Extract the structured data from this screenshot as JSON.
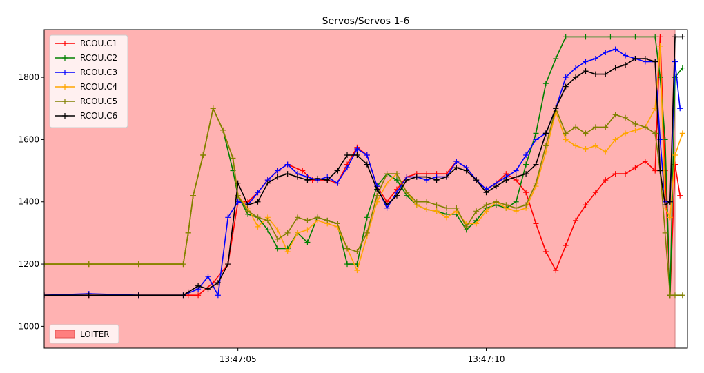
{
  "chart_data": {
    "type": "line",
    "title": "Servos/Servos 1-6",
    "xlabel": "",
    "ylabel": "",
    "x_unit": "seconds",
    "x_ticks": [
      {
        "value": 5,
        "label": "13:47:05"
      },
      {
        "value": 10,
        "label": "13:47:10"
      }
    ],
    "y_ticks": [
      1000,
      1200,
      1400,
      1600,
      1800
    ],
    "xlim": [
      1.1,
      14.05
    ],
    "ylim": [
      930,
      1953
    ],
    "grid": false,
    "legend_position": "top-left",
    "series": [
      {
        "name": "RCOU.C1",
        "color": "#ff0000",
        "x": [
          1.1,
          2,
          3,
          4,
          4.2,
          4.5,
          4.8,
          5.0,
          5.2,
          5.4,
          5.6,
          5.8,
          6.0,
          6.3,
          6.5,
          6.8,
          7.0,
          7.2,
          7.4,
          7.6,
          7.8,
          8.0,
          8.2,
          8.4,
          8.6,
          8.8,
          9.0,
          9.2,
          9.4,
          9.6,
          9.8,
          10.0,
          10.2,
          10.4,
          10.6,
          10.8,
          11.0,
          11.2,
          11.4,
          11.6,
          11.8,
          12.0,
          12.2,
          12.4,
          12.6,
          12.8,
          13.0,
          13.2,
          13.4,
          13.5,
          13.6,
          13.7,
          13.8,
          13.9
        ],
        "y": [
          1100,
          1100,
          1100,
          1100,
          1100,
          1140,
          1200,
          1400,
          1400,
          1430,
          1470,
          1500,
          1520,
          1500,
          1470,
          1470,
          1460,
          1520,
          1575,
          1550,
          1450,
          1400,
          1440,
          1480,
          1490,
          1490,
          1490,
          1490,
          1530,
          1510,
          1470,
          1440,
          1460,
          1490,
          1470,
          1430,
          1330,
          1240,
          1180,
          1260,
          1340,
          1390,
          1430,
          1470,
          1490,
          1490,
          1510,
          1530,
          1500,
          1930,
          1500,
          1100,
          1520,
          1420
        ]
      },
      {
        "name": "RCOU.C2",
        "color": "#008000",
        "x": [
          1.1,
          2,
          3,
          3.9,
          4.0,
          4.1,
          4.3,
          4.5,
          4.7,
          4.9,
          5.0,
          5.2,
          5.4,
          5.6,
          5.8,
          6.0,
          6.2,
          6.4,
          6.6,
          6.8,
          7.0,
          7.2,
          7.4,
          7.6,
          7.8,
          8.0,
          8.2,
          8.4,
          8.6,
          8.8,
          9.0,
          9.2,
          9.4,
          9.6,
          9.8,
          10.0,
          10.2,
          10.4,
          10.6,
          10.8,
          11.0,
          11.2,
          11.4,
          11.6,
          12.0,
          12.5,
          13.0,
          13.4,
          13.5,
          13.6,
          13.7,
          13.8,
          13.95
        ],
        "y": [
          1200,
          1200,
          1200,
          1200,
          1300,
          1420,
          1550,
          1700,
          1630,
          1500,
          1420,
          1360,
          1350,
          1310,
          1250,
          1250,
          1300,
          1270,
          1350,
          1340,
          1330,
          1200,
          1200,
          1350,
          1450,
          1490,
          1470,
          1420,
          1390,
          1375,
          1370,
          1360,
          1360,
          1310,
          1340,
          1380,
          1390,
          1380,
          1400,
          1520,
          1620,
          1780,
          1860,
          1930,
          1930,
          1930,
          1930,
          1930,
          1800,
          1600,
          1100,
          1800,
          1830
        ]
      },
      {
        "name": "RCOU.C3",
        "color": "#0000ff",
        "x": [
          1.1,
          2,
          3,
          3.9,
          4.2,
          4.4,
          4.6,
          4.8,
          5.0,
          5.2,
          5.4,
          5.6,
          5.8,
          6.0,
          6.2,
          6.4,
          6.6,
          6.8,
          7.0,
          7.2,
          7.4,
          7.6,
          7.8,
          8.0,
          8.2,
          8.4,
          8.6,
          8.8,
          9.0,
          9.2,
          9.4,
          9.6,
          9.8,
          10.0,
          10.2,
          10.4,
          10.6,
          10.8,
          11.0,
          11.2,
          11.4,
          11.6,
          11.8,
          12.0,
          12.2,
          12.4,
          12.6,
          12.8,
          13.0,
          13.2,
          13.4,
          13.5,
          13.6,
          13.7,
          13.8,
          13.9
        ],
        "y": [
          1100,
          1105,
          1100,
          1100,
          1120,
          1160,
          1100,
          1350,
          1400,
          1390,
          1430,
          1470,
          1500,
          1520,
          1490,
          1480,
          1470,
          1480,
          1460,
          1510,
          1570,
          1550,
          1450,
          1380,
          1430,
          1480,
          1480,
          1470,
          1480,
          1480,
          1530,
          1510,
          1470,
          1440,
          1460,
          1480,
          1500,
          1550,
          1600,
          1620,
          1700,
          1800,
          1830,
          1850,
          1860,
          1880,
          1890,
          1870,
          1860,
          1850,
          1850,
          1600,
          1400,
          1400,
          1850,
          1700
        ]
      },
      {
        "name": "RCOU.C4",
        "color": "#ffa500",
        "x": [
          1.1,
          2,
          3,
          3.9,
          4.0,
          4.1,
          4.3,
          4.5,
          4.7,
          4.9,
          5.0,
          5.2,
          5.4,
          5.6,
          5.8,
          6.0,
          6.2,
          6.4,
          6.6,
          6.8,
          7.0,
          7.2,
          7.4,
          7.6,
          7.8,
          8.0,
          8.2,
          8.4,
          8.6,
          8.8,
          9.0,
          9.2,
          9.4,
          9.6,
          9.8,
          10.0,
          10.2,
          10.4,
          10.6,
          10.8,
          11.0,
          11.2,
          11.4,
          11.6,
          11.8,
          12.0,
          12.2,
          12.4,
          12.6,
          12.8,
          13.0,
          13.2,
          13.4,
          13.5,
          13.6,
          13.7,
          13.8,
          13.95
        ],
        "y": [
          1200,
          1200,
          1200,
          1200,
          1300,
          1420,
          1550,
          1700,
          1630,
          1540,
          1420,
          1380,
          1320,
          1350,
          1310,
          1240,
          1300,
          1310,
          1340,
          1330,
          1320,
          1250,
          1180,
          1290,
          1400,
          1460,
          1490,
          1430,
          1390,
          1375,
          1370,
          1350,
          1370,
          1330,
          1330,
          1370,
          1400,
          1380,
          1370,
          1380,
          1450,
          1560,
          1690,
          1600,
          1580,
          1570,
          1580,
          1560,
          1600,
          1620,
          1630,
          1640,
          1700,
          1900,
          1380,
          1350,
          1550,
          1620
        ]
      },
      {
        "name": "RCOU.C5",
        "color": "#808000",
        "x": [
          1.1,
          2,
          3,
          3.9,
          4.0,
          4.1,
          4.3,
          4.5,
          4.7,
          4.9,
          5.0,
          5.2,
          5.4,
          5.6,
          5.8,
          6.0,
          6.2,
          6.4,
          6.6,
          6.8,
          7.0,
          7.2,
          7.4,
          7.6,
          7.8,
          8.0,
          8.2,
          8.4,
          8.6,
          8.8,
          9.0,
          9.2,
          9.4,
          9.6,
          9.8,
          10.0,
          10.2,
          10.4,
          10.6,
          10.8,
          11.0,
          11.2,
          11.4,
          11.6,
          11.8,
          12.0,
          12.2,
          12.4,
          12.6,
          12.8,
          13.0,
          13.2,
          13.4,
          13.5,
          13.6,
          13.7,
          13.8,
          13.95
        ],
        "y": [
          1200,
          1200,
          1200,
          1200,
          1300,
          1420,
          1550,
          1700,
          1630,
          1540,
          1420,
          1370,
          1350,
          1340,
          1280,
          1300,
          1350,
          1340,
          1350,
          1340,
          1330,
          1250,
          1240,
          1300,
          1420,
          1490,
          1490,
          1430,
          1400,
          1400,
          1390,
          1380,
          1380,
          1320,
          1370,
          1390,
          1400,
          1390,
          1380,
          1390,
          1460,
          1580,
          1700,
          1620,
          1640,
          1620,
          1640,
          1640,
          1680,
          1670,
          1650,
          1640,
          1620,
          1500,
          1300,
          1100,
          1100,
          1100
        ]
      },
      {
        "name": "RCOU.C6",
        "color": "#000000",
        "x": [
          1.1,
          2,
          3,
          3.9,
          4.0,
          4.2,
          4.4,
          4.6,
          4.8,
          5.0,
          5.2,
          5.4,
          5.6,
          5.8,
          6.0,
          6.2,
          6.4,
          6.6,
          6.8,
          7.0,
          7.2,
          7.4,
          7.6,
          7.8,
          8.0,
          8.2,
          8.4,
          8.6,
          8.8,
          9.0,
          9.2,
          9.4,
          9.6,
          9.8,
          10.0,
          10.2,
          10.4,
          10.6,
          10.8,
          11.0,
          11.2,
          11.4,
          11.6,
          11.8,
          12.0,
          12.2,
          12.4,
          12.6,
          12.8,
          13.0,
          13.2,
          13.4,
          13.5,
          13.6,
          13.7,
          13.8,
          13.95
        ],
        "y": [
          1100,
          1100,
          1100,
          1100,
          1110,
          1130,
          1120,
          1140,
          1200,
          1460,
          1390,
          1400,
          1460,
          1480,
          1490,
          1480,
          1470,
          1475,
          1470,
          1500,
          1550,
          1550,
          1520,
          1440,
          1390,
          1420,
          1470,
          1480,
          1480,
          1470,
          1480,
          1510,
          1500,
          1470,
          1430,
          1450,
          1470,
          1480,
          1490,
          1520,
          1620,
          1700,
          1770,
          1800,
          1820,
          1810,
          1810,
          1830,
          1840,
          1860,
          1860,
          1850,
          1500,
          1390,
          1400,
          1930,
          1930
        ]
      }
    ],
    "shaded_regions": [
      {
        "label": "LOITER",
        "x_start": 1.1,
        "x_end": 13.8,
        "color": "#ff7f7f"
      }
    ]
  }
}
